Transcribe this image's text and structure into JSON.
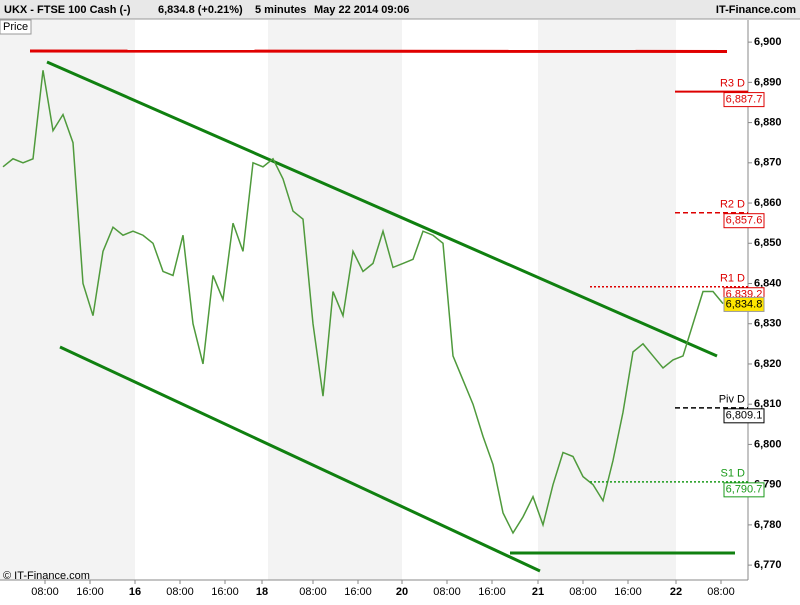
{
  "chart_data": {
    "type": "line",
    "header": {
      "symbol": "UKX - FTSE 100 Cash (-)",
      "quote": "6,834.8 (+0.21%)",
      "interval": "5 minutes",
      "date": "May 22 2014 09:06",
      "brand": "IT-Finance.com"
    },
    "panel_label": "Price",
    "footer": "© IT-Finance.com",
    "x": [
      0,
      1,
      2,
      3,
      4,
      5,
      6,
      7,
      8,
      9,
      10,
      11,
      12,
      13,
      14,
      15,
      16,
      17,
      18,
      19,
      20,
      21,
      22,
      23,
      24,
      25,
      26,
      27,
      28,
      29,
      30,
      31,
      32,
      33,
      34,
      35,
      36,
      37,
      38,
      39,
      40,
      41,
      42,
      43,
      44,
      45,
      46,
      47,
      48,
      49,
      50,
      51,
      52,
      53,
      54,
      55,
      56,
      57,
      58,
      59,
      60,
      61,
      62,
      63,
      64,
      65,
      66,
      67,
      68,
      69,
      70,
      71,
      72
    ],
    "series": [
      {
        "name": "UKX",
        "color": "#4f9a3c",
        "values": [
          6869,
          6871,
          6870,
          6871,
          6893,
          6878,
          6882,
          6875,
          6840,
          6832,
          6848,
          6854,
          6852,
          6853,
          6852,
          6850,
          6843,
          6842,
          6852,
          6830,
          6820,
          6842,
          6836,
          6855,
          6848,
          6870,
          6869,
          6871,
          6866,
          6858,
          6856,
          6830,
          6812,
          6838,
          6832,
          6848,
          6843,
          6845,
          6853,
          6844,
          6845,
          6846,
          6853,
          6852,
          6850,
          6822,
          6816,
          6810,
          6802,
          6795,
          6783,
          6778,
          6782,
          6787,
          6780,
          6790,
          6798,
          6797,
          6792,
          6790,
          6786,
          6796,
          6808,
          6823,
          6825,
          6822,
          6819,
          6821,
          6822,
          6830,
          6838,
          6838,
          6835
        ]
      }
    ],
    "xlim": [
      -0.3,
      74.5
    ],
    "xticks": [
      {
        "value": 4.2,
        "label": "08:00"
      },
      {
        "value": 8.7,
        "label": "16:00"
      },
      {
        "value": 13.2,
        "label": "16"
      },
      {
        "value": 17.7,
        "label": "08:00"
      },
      {
        "value": 22.2,
        "label": "16:00"
      },
      {
        "value": 25.9,
        "label": "18"
      },
      {
        "value": 31.0,
        "label": "08:00"
      },
      {
        "value": 35.5,
        "label": "16:00"
      },
      {
        "value": 39.9,
        "label": "20"
      },
      {
        "value": 44.4,
        "label": "08:00"
      },
      {
        "value": 48.9,
        "label": "16:00"
      },
      {
        "value": 53.5,
        "label": "21"
      },
      {
        "value": 58.0,
        "label": "08:00"
      },
      {
        "value": 62.5,
        "label": "16:00"
      },
      {
        "value": 67.3,
        "label": "22"
      },
      {
        "value": 71.8,
        "label": "08:00"
      }
    ],
    "ylim": [
      6766.3,
      6905.5
    ],
    "yticks": [
      {
        "value": 6770,
        "label": "6,770"
      },
      {
        "value": 6780,
        "label": "6,780"
      },
      {
        "value": 6790,
        "label": "6,790"
      },
      {
        "value": 6800,
        "label": "6,800"
      },
      {
        "value": 6810,
        "label": "6,810"
      },
      {
        "value": 6820,
        "label": "6,820"
      },
      {
        "value": 6830,
        "label": "6,830"
      },
      {
        "value": 6840,
        "label": "6,840"
      },
      {
        "value": 6850,
        "label": "6,850"
      },
      {
        "value": 6860,
        "label": "6,860"
      },
      {
        "value": 6870,
        "label": "6,870"
      },
      {
        "value": 6880,
        "label": "6,880"
      },
      {
        "value": 6890,
        "label": "6,890"
      },
      {
        "value": 6900,
        "label": "6,900"
      }
    ],
    "levels": [
      {
        "name": "R3 D",
        "value": 6887.7,
        "value_label": "6,887.7",
        "color": "#dd0000",
        "style": "solid",
        "span": "short"
      },
      {
        "name": "R2 D",
        "value": 6857.6,
        "value_label": "6,857.6",
        "color": "#dd0000",
        "style": "dashed",
        "span": "short"
      },
      {
        "name": "R1 D",
        "value": 6839.2,
        "value_label": "6,839.2",
        "color": "#dd0000",
        "style": "dotted",
        "span": "long"
      },
      {
        "name": "Piv D",
        "value": 6809.1,
        "value_label": "6,809.1",
        "color": "#000000",
        "style": "dashed",
        "span": "short"
      },
      {
        "name": "S1 D",
        "value": 6790.7,
        "value_label": "6,790.7",
        "color": "#1a9a1a",
        "style": "dotted",
        "span": "long"
      }
    ],
    "last": {
      "value": 6834.8,
      "value_label": "6,834.8",
      "color": "#ffe600"
    }
  }
}
